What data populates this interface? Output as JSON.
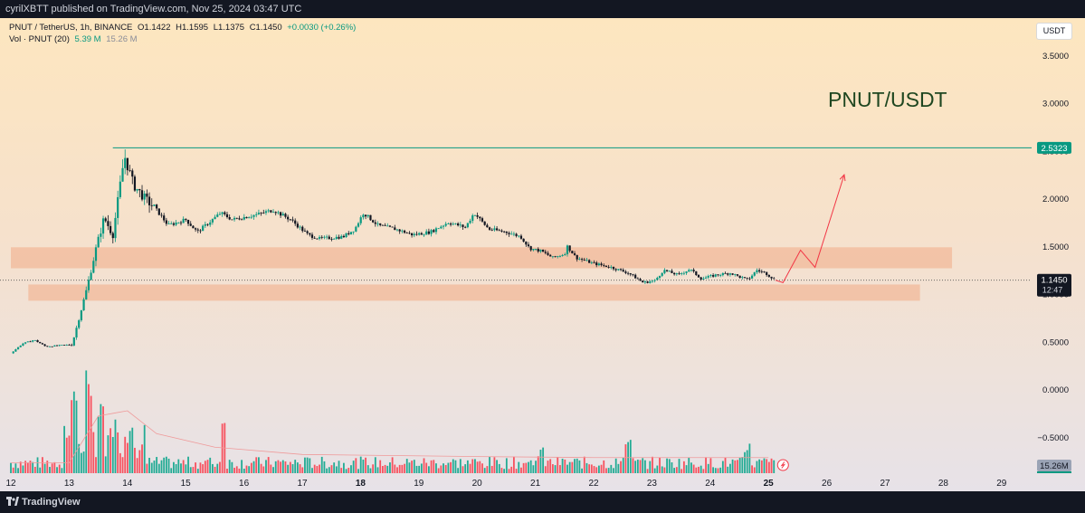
{
  "header": {
    "attribution": "cyrilXBTT published on TradingView.com, Nov 25, 2024 03:47 UTC"
  },
  "legend": {
    "symbol": "PNUT / TetherUS, 1h, BINANCE",
    "open": "O1.1422",
    "high": "H1.1595",
    "low": "L1.1375",
    "close": "C1.1450",
    "change": "+0.0030 (+0.26%)",
    "volume_label": "Vol · PNUT (20)",
    "volume_value": "5.39 M",
    "volume_ma": "15.26 M"
  },
  "currency_badge": "USDT",
  "footer": {
    "brand": "TradingView"
  },
  "colors": {
    "up": "#089981",
    "down": "#131722",
    "zone": "#f2b89a",
    "resistance": "#089981",
    "projection": "#f23645",
    "current_line": "#555555",
    "volume_up": "#22ab94",
    "volume_down": "#f7525f",
    "volume_ma": "#ef9a9a"
  },
  "chart_data": {
    "type": "candlestick",
    "title": "PNUT/USDT",
    "xlabel": "",
    "ylabel": "",
    "x_ticks": [
      "12",
      "13",
      "14",
      "15",
      "16",
      "17",
      "18",
      "19",
      "20",
      "21",
      "22",
      "23",
      "24",
      "25",
      "26",
      "27",
      "28",
      "29"
    ],
    "x_tick_bold": [
      "18",
      "25"
    ],
    "x_range": [
      12,
      29.5
    ],
    "y_ticks": [
      "3.5000",
      "3.0000",
      "2.5000",
      "2.0000",
      "1.5000",
      "1.0000",
      "0.5000",
      "0.0000",
      "−0.5000"
    ],
    "ylim": [
      -0.62,
      3.95
    ],
    "price_path": [
      [
        12.0,
        0.38
      ],
      [
        12.2,
        0.48
      ],
      [
        12.4,
        0.52
      ],
      [
        12.6,
        0.45
      ],
      [
        12.8,
        0.46
      ],
      [
        13.05,
        0.47
      ],
      [
        13.3,
        1.05
      ],
      [
        13.45,
        1.45
      ],
      [
        13.6,
        1.8
      ],
      [
        13.75,
        1.62
      ],
      [
        13.95,
        2.45
      ],
      [
        14.1,
        2.15
      ],
      [
        14.3,
        2.0
      ],
      [
        14.5,
        1.88
      ],
      [
        14.7,
        1.72
      ],
      [
        15.0,
        1.78
      ],
      [
        15.2,
        1.65
      ],
      [
        15.4,
        1.75
      ],
      [
        15.6,
        1.85
      ],
      [
        15.8,
        1.78
      ],
      [
        16.2,
        1.83
      ],
      [
        16.5,
        1.88
      ],
      [
        16.8,
        1.78
      ],
      [
        17.1,
        1.62
      ],
      [
        17.3,
        1.58
      ],
      [
        17.7,
        1.6
      ],
      [
        17.9,
        1.68
      ],
      [
        18.05,
        1.85
      ],
      [
        18.3,
        1.72
      ],
      [
        18.6,
        1.68
      ],
      [
        18.9,
        1.62
      ],
      [
        19.2,
        1.65
      ],
      [
        19.5,
        1.75
      ],
      [
        19.8,
        1.7
      ],
      [
        19.95,
        1.85
      ],
      [
        20.2,
        1.68
      ],
      [
        20.5,
        1.65
      ],
      [
        20.75,
        1.6
      ],
      [
        20.9,
        1.48
      ],
      [
        21.1,
        1.45
      ],
      [
        21.3,
        1.38
      ],
      [
        21.5,
        1.42
      ],
      [
        21.55,
        1.5
      ],
      [
        21.7,
        1.38
      ],
      [
        22.0,
        1.32
      ],
      [
        22.3,
        1.28
      ],
      [
        22.6,
        1.22
      ],
      [
        22.85,
        1.12
      ],
      [
        23.05,
        1.14
      ],
      [
        23.2,
        1.25
      ],
      [
        23.45,
        1.2
      ],
      [
        23.65,
        1.26
      ],
      [
        23.85,
        1.16
      ],
      [
        24.1,
        1.2
      ],
      [
        24.35,
        1.22
      ],
      [
        24.5,
        1.18
      ],
      [
        24.65,
        1.15
      ],
      [
        24.8,
        1.25
      ],
      [
        24.95,
        1.22
      ],
      [
        25.12,
        1.145
      ]
    ],
    "resistance": {
      "from_x": 13.75,
      "value": 2.5323,
      "label": "2.5323"
    },
    "current_price": {
      "value": 1.145,
      "label": "1.1450",
      "countdown": "12:47"
    },
    "zones": [
      {
        "x_start": 12.0,
        "x_end": 28.15,
        "y_low": 1.27,
        "y_high": 1.49
      },
      {
        "x_start": 12.3,
        "x_end": 27.6,
        "y_low": 0.93,
        "y_high": 1.1
      }
    ],
    "projection": [
      [
        25.12,
        1.145
      ],
      [
        25.25,
        1.12
      ],
      [
        25.55,
        1.46
      ],
      [
        25.8,
        1.28
      ],
      [
        26.3,
        2.25
      ]
    ],
    "volume": {
      "label": "15.26M",
      "ma_line": [
        [
          12,
          0.1
        ],
        [
          13,
          0.1
        ],
        [
          13.5,
          0.55
        ],
        [
          14,
          0.6
        ],
        [
          14.5,
          0.38
        ],
        [
          15.5,
          0.25
        ],
        [
          17,
          0.18
        ],
        [
          20,
          0.16
        ],
        [
          22,
          0.15
        ],
        [
          25,
          0.15
        ]
      ],
      "spikes": [
        [
          13.1,
          0.9
        ],
        [
          13.35,
          1.0
        ],
        [
          13.55,
          0.7
        ],
        [
          13.8,
          0.55
        ],
        [
          14.05,
          0.45
        ],
        [
          15.65,
          0.6
        ],
        [
          21.1,
          0.25
        ],
        [
          22.6,
          0.35
        ],
        [
          24.65,
          0.3
        ]
      ]
    }
  }
}
